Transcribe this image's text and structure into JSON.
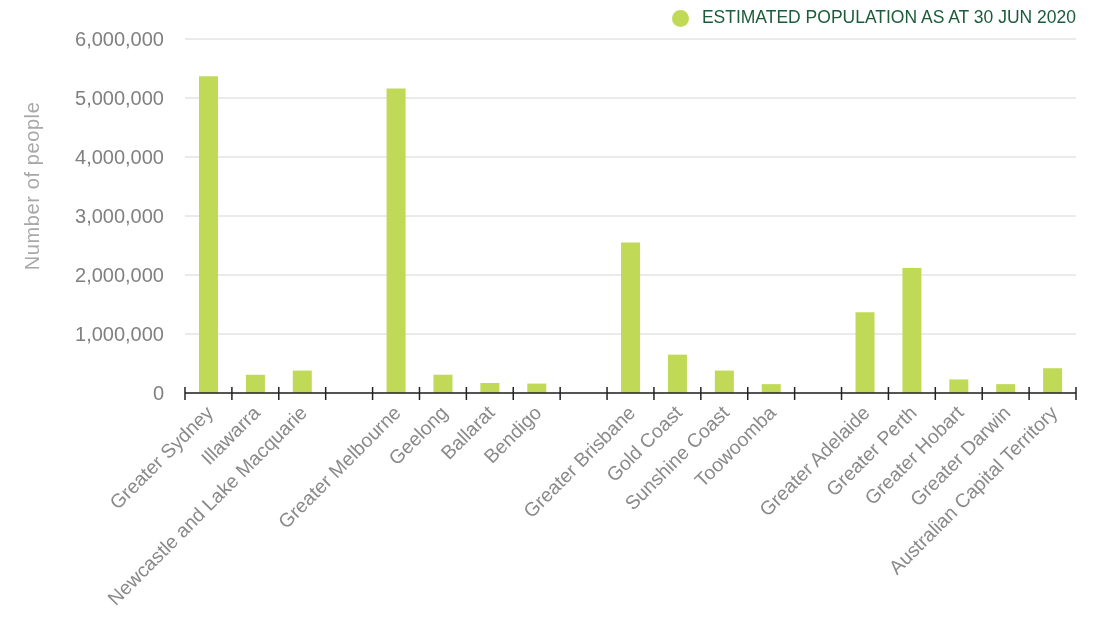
{
  "chart_data": {
    "type": "bar",
    "ylabel": "Number of people",
    "categories": [
      "Greater Sydney",
      "Illawarra",
      "Newcastle and Lake Macquarie",
      null,
      "Greater Melbourne",
      "Geelong",
      "Ballarat",
      "Bendigo",
      null,
      "Greater Brisbane",
      "Gold Coast",
      "Sunshine Coast",
      "Toowoomba",
      null,
      "Greater Adelaide",
      "Greater Perth",
      "Greater Hobart",
      "Greater Darwin",
      "Australian Capital Territory"
    ],
    "series": [
      {
        "name": "ESTIMATED POPULATION AS AT 30 JUN 2020",
        "color": "#c0d957",
        "values": [
          5370000,
          310000,
          380000,
          null,
          5160000,
          310000,
          170000,
          160000,
          null,
          2550000,
          650000,
          380000,
          150000,
          null,
          1370000,
          2120000,
          230000,
          150000,
          420000
        ]
      }
    ],
    "ylim": [
      0,
      6000000
    ],
    "yticks": [
      0,
      {
        "value": 1000000,
        "label": "1,000,000"
      },
      {
        "value": 2000000,
        "label": "2,000,000"
      },
      {
        "value": 3000000,
        "label": "3,000,000"
      },
      {
        "value": 4000000,
        "label": "4,000,000"
      },
      {
        "value": 5000000,
        "label": "5,000,000"
      },
      {
        "value": 6000000,
        "label": "6,000,000"
      }
    ],
    "grid": "y",
    "legend": "top right"
  }
}
